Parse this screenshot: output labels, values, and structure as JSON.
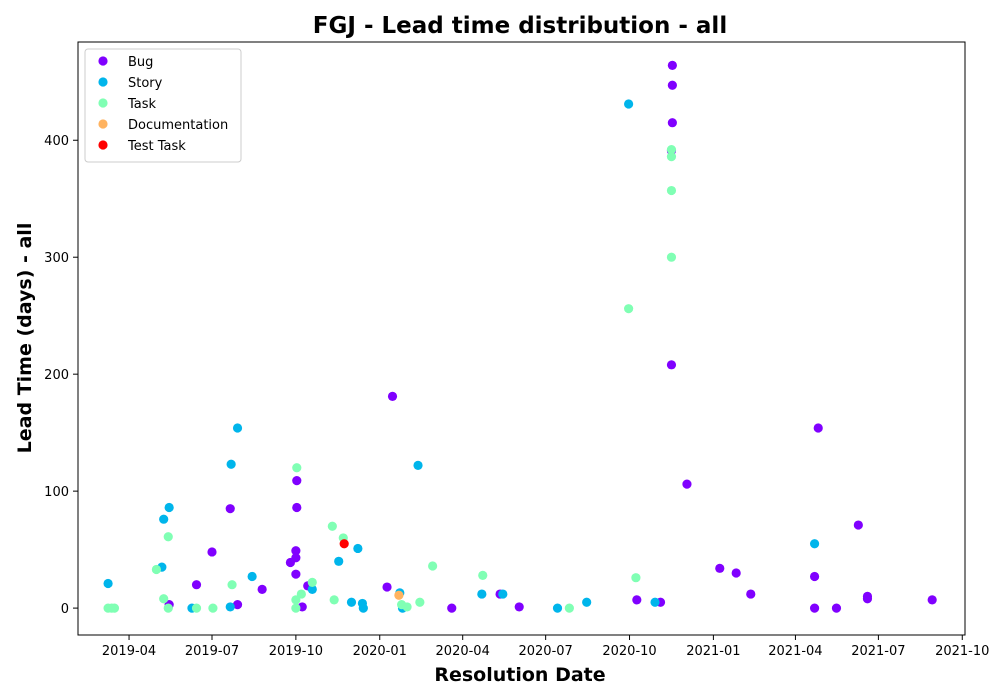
{
  "chart_data": {
    "type": "scatter",
    "title": "FGJ - Lead time distribution - all",
    "xlabel": "Resolution Date",
    "ylabel": "Lead Time (days) - all",
    "x_axis": {
      "type": "date",
      "range": [
        "2019-02-04",
        "2021-10-04"
      ],
      "ticks": [
        {
          "date": "2019-04-01",
          "label": "2019-04"
        },
        {
          "date": "2019-07-01",
          "label": "2019-07"
        },
        {
          "date": "2019-10-01",
          "label": "2019-10"
        },
        {
          "date": "2020-01-01",
          "label": "2020-01"
        },
        {
          "date": "2020-04-01",
          "label": "2020-04"
        },
        {
          "date": "2020-07-01",
          "label": "2020-07"
        },
        {
          "date": "2020-10-01",
          "label": "2020-10"
        },
        {
          "date": "2021-01-01",
          "label": "2021-01"
        },
        {
          "date": "2021-04-01",
          "label": "2021-04"
        },
        {
          "date": "2021-07-01",
          "label": "2021-07"
        },
        {
          "date": "2021-10-01",
          "label": "2021-10"
        }
      ]
    },
    "y_axis": {
      "range": [
        -23,
        484
      ],
      "ticks": [
        {
          "value": 0,
          "label": "0"
        },
        {
          "value": 100,
          "label": "100"
        },
        {
          "value": 200,
          "label": "200"
        },
        {
          "value": 300,
          "label": "300"
        },
        {
          "value": 400,
          "label": "400"
        }
      ]
    },
    "grid": false,
    "legend": "upper-left",
    "series": [
      {
        "name": "Bug",
        "color": "#8000ff",
        "points": [
          {
            "x": "2019-05-15",
            "y": 3
          },
          {
            "x": "2019-06-14",
            "y": 20
          },
          {
            "x": "2019-07-01",
            "y": 48
          },
          {
            "x": "2019-07-21",
            "y": 85
          },
          {
            "x": "2019-07-29",
            "y": 3
          },
          {
            "x": "2019-08-25",
            "y": 16
          },
          {
            "x": "2019-09-25",
            "y": 39
          },
          {
            "x": "2019-10-01",
            "y": 49
          },
          {
            "x": "2019-10-01",
            "y": 43
          },
          {
            "x": "2019-10-01",
            "y": 29
          },
          {
            "x": "2019-10-02",
            "y": 109
          },
          {
            "x": "2019-10-02",
            "y": 86
          },
          {
            "x": "2019-10-08",
            "y": 1
          },
          {
            "x": "2019-10-14",
            "y": 19
          },
          {
            "x": "2020-01-09",
            "y": 18
          },
          {
            "x": "2020-01-15",
            "y": 181
          },
          {
            "x": "2020-03-20",
            "y": 0
          },
          {
            "x": "2020-05-12",
            "y": 12
          },
          {
            "x": "2020-06-02",
            "y": 1
          },
          {
            "x": "2020-10-09",
            "y": 7
          },
          {
            "x": "2020-11-04",
            "y": 5
          },
          {
            "x": "2020-11-16",
            "y": 391
          },
          {
            "x": "2020-11-16",
            "y": 208
          },
          {
            "x": "2020-11-17",
            "y": 464
          },
          {
            "x": "2020-11-17",
            "y": 447
          },
          {
            "x": "2020-11-17",
            "y": 415
          },
          {
            "x": "2020-12-03",
            "y": 106
          },
          {
            "x": "2021-01-08",
            "y": 34
          },
          {
            "x": "2021-01-26",
            "y": 30
          },
          {
            "x": "2021-02-11",
            "y": 12
          },
          {
            "x": "2021-04-22",
            "y": 27
          },
          {
            "x": "2021-04-22",
            "y": 0
          },
          {
            "x": "2021-04-26",
            "y": 154
          },
          {
            "x": "2021-05-16",
            "y": 0
          },
          {
            "x": "2021-06-09",
            "y": 71
          },
          {
            "x": "2021-06-19",
            "y": 10
          },
          {
            "x": "2021-06-19",
            "y": 8
          },
          {
            "x": "2021-08-29",
            "y": 7
          }
        ]
      },
      {
        "name": "Story",
        "color": "#00b5eb",
        "points": [
          {
            "x": "2019-03-09",
            "y": 21
          },
          {
            "x": "2019-05-07",
            "y": 35
          },
          {
            "x": "2019-05-09",
            "y": 76
          },
          {
            "x": "2019-05-15",
            "y": 86
          },
          {
            "x": "2019-06-09",
            "y": 0
          },
          {
            "x": "2019-07-21",
            "y": 1
          },
          {
            "x": "2019-07-22",
            "y": 123
          },
          {
            "x": "2019-07-29",
            "y": 154
          },
          {
            "x": "2019-08-14",
            "y": 27
          },
          {
            "x": "2019-10-19",
            "y": 16
          },
          {
            "x": "2019-11-17",
            "y": 40
          },
          {
            "x": "2019-12-01",
            "y": 5
          },
          {
            "x": "2019-12-08",
            "y": 51
          },
          {
            "x": "2019-12-13",
            "y": 4
          },
          {
            "x": "2019-12-14",
            "y": 0
          },
          {
            "x": "2020-01-23",
            "y": 13
          },
          {
            "x": "2020-01-26",
            "y": 0
          },
          {
            "x": "2020-02-12",
            "y": 122
          },
          {
            "x": "2020-04-22",
            "y": 12
          },
          {
            "x": "2020-05-15",
            "y": 12
          },
          {
            "x": "2020-07-14",
            "y": 0
          },
          {
            "x": "2020-08-15",
            "y": 5
          },
          {
            "x": "2020-09-30",
            "y": 431
          },
          {
            "x": "2020-10-29",
            "y": 5
          },
          {
            "x": "2021-04-22",
            "y": 55
          }
        ]
      },
      {
        "name": "Task",
        "color": "#80ffb4",
        "points": [
          {
            "x": "2019-03-09",
            "y": 0
          },
          {
            "x": "2019-03-13",
            "y": 0
          },
          {
            "x": "2019-03-16",
            "y": 0
          },
          {
            "x": "2019-05-01",
            "y": 33
          },
          {
            "x": "2019-05-09",
            "y": 8
          },
          {
            "x": "2019-05-14",
            "y": 0
          },
          {
            "x": "2019-05-14",
            "y": 61
          },
          {
            "x": "2019-06-14",
            "y": 0
          },
          {
            "x": "2019-07-02",
            "y": 0
          },
          {
            "x": "2019-07-23",
            "y": 20
          },
          {
            "x": "2019-10-01",
            "y": 7
          },
          {
            "x": "2019-10-01",
            "y": 0
          },
          {
            "x": "2019-10-02",
            "y": 120
          },
          {
            "x": "2019-10-07",
            "y": 12
          },
          {
            "x": "2019-10-19",
            "y": 22
          },
          {
            "x": "2019-11-10",
            "y": 70
          },
          {
            "x": "2019-11-12",
            "y": 7
          },
          {
            "x": "2019-11-22",
            "y": 60
          },
          {
            "x": "2020-01-25",
            "y": 3
          },
          {
            "x": "2020-01-31",
            "y": 1
          },
          {
            "x": "2020-02-14",
            "y": 5
          },
          {
            "x": "2020-02-28",
            "y": 36
          },
          {
            "x": "2020-04-23",
            "y": 28
          },
          {
            "x": "2020-07-27",
            "y": 0
          },
          {
            "x": "2020-09-30",
            "y": 256
          },
          {
            "x": "2020-10-08",
            "y": 26
          },
          {
            "x": "2020-11-16",
            "y": 392
          },
          {
            "x": "2020-11-16",
            "y": 386
          },
          {
            "x": "2020-11-16",
            "y": 357
          },
          {
            "x": "2020-11-16",
            "y": 300
          }
        ]
      },
      {
        "name": "Documentation",
        "color": "#ffb360",
        "points": [
          {
            "x": "2020-01-22",
            "y": 11
          }
        ]
      },
      {
        "name": "Test Task",
        "color": "#ff0000",
        "points": [
          {
            "x": "2019-11-23",
            "y": 55
          }
        ]
      }
    ]
  }
}
